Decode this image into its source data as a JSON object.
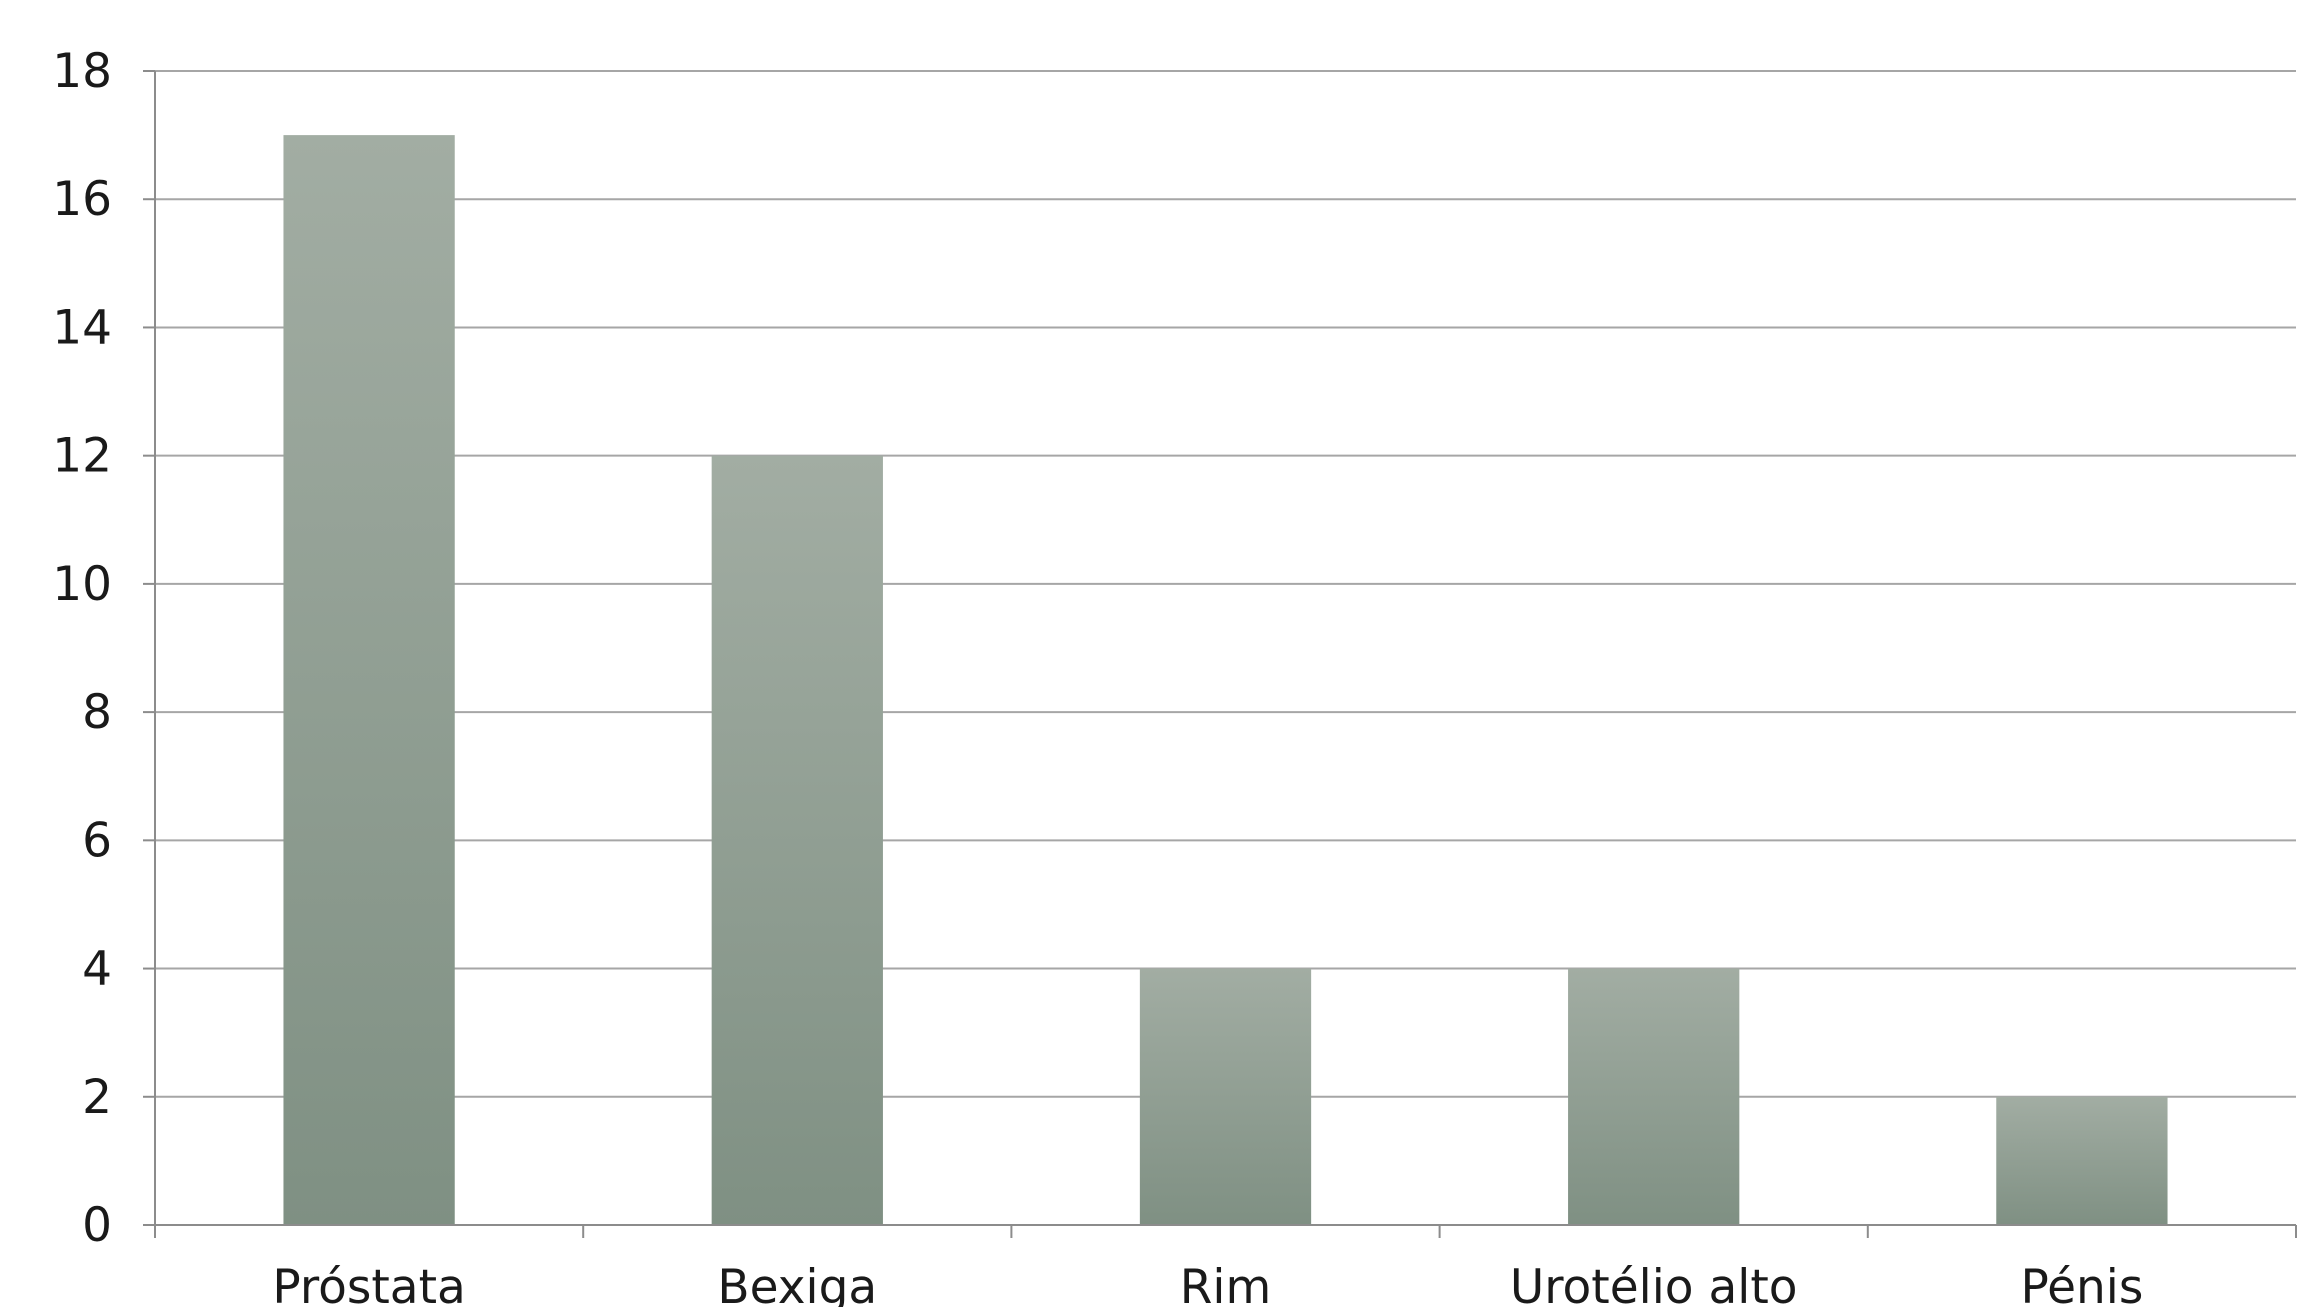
{
  "chart_data": {
    "type": "bar",
    "categories": [
      "Próstata",
      "Bexiga",
      "Rim",
      "Urotélio alto",
      "Pénis"
    ],
    "values": [
      17,
      12,
      4,
      4,
      2
    ],
    "title": "",
    "xlabel": "",
    "ylabel": "",
    "ylim": [
      0,
      18
    ],
    "yticks": [
      "0",
      "2",
      "4",
      "6",
      "8",
      "10",
      "12",
      "14",
      "16",
      "18"
    ],
    "grid": true,
    "legend": "none",
    "colors": {
      "bar_top": "#a2ada3",
      "bar_bottom": "#7f9083",
      "grid": "#a6a6a6",
      "axis": "#8c8c8c"
    }
  }
}
